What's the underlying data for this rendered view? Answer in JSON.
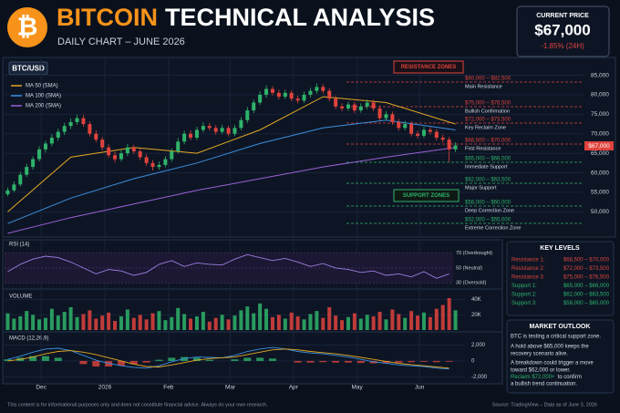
{
  "header": {
    "title_accent": "BITCOIN",
    "title_rest": "TECHNICAL ANALYSIS",
    "subtitle": "DAILY CHART – JUNE 2026"
  },
  "price_box": {
    "label": "CURRENT PRICE",
    "price": "$67,000",
    "change": "-1.85% (24H)"
  },
  "chart_data": [
    {
      "type": "candlestick",
      "title": "BTC/USD",
      "up_color": "#2fb36a",
      "down_color": "#e0433d",
      "grid": true,
      "xlim": [
        -0.5,
        71.5
      ],
      "xticks": [
        {
          "value": 5.3,
          "label": "Dec"
        },
        {
          "value": 15.4,
          "label": "2026"
        },
        {
          "value": 25.5,
          "label": "Feb"
        },
        {
          "value": 35.3,
          "label": "Mar"
        },
        {
          "value": 45.3,
          "label": "Apr"
        },
        {
          "value": 55.4,
          "label": "May"
        },
        {
          "value": 65.3,
          "label": "Jun"
        }
      ],
      "ylim": [
        44000,
        88400
      ],
      "yticks": [
        {
          "value": 85000,
          "label": "85,000"
        },
        {
          "value": 80000,
          "label": "80,000"
        },
        {
          "value": 75000,
          "label": "75,000"
        },
        {
          "value": 70000,
          "label": "70,000"
        },
        {
          "value": 65000,
          "label": "65,000"
        },
        {
          "value": 60000,
          "label": "60,000"
        },
        {
          "value": 55000,
          "label": "55,000"
        },
        {
          "value": 50000,
          "label": "50,000"
        }
      ],
      "ohlc": [
        [
          54500,
          56200,
          54000,
          55500
        ],
        [
          55500,
          57800,
          55000,
          57000
        ],
        [
          57000,
          60200,
          56500,
          59500
        ],
        [
          59500,
          62300,
          58900,
          61500
        ],
        [
          61500,
          64200,
          60800,
          63500
        ],
        [
          63500,
          66800,
          62900,
          66000
        ],
        [
          66000,
          68200,
          65200,
          67500
        ],
        [
          67500,
          69900,
          66800,
          69000
        ],
        [
          69000,
          71300,
          68200,
          70500
        ],
        [
          70500,
          72800,
          69700,
          72000
        ],
        [
          72000,
          73900,
          71200,
          73000
        ],
        [
          73000,
          74900,
          72300,
          74000
        ],
        [
          74000,
          74800,
          71800,
          72500
        ],
        [
          72500,
          73200,
          69300,
          70000
        ],
        [
          70000,
          70900,
          67800,
          68500
        ],
        [
          68500,
          69200,
          65700,
          66500
        ],
        [
          66500,
          67300,
          63800,
          64500
        ],
        [
          64500,
          65400,
          62700,
          63500
        ],
        [
          63500,
          65800,
          62900,
          65000
        ],
        [
          65000,
          67400,
          64300,
          66500
        ],
        [
          66500,
          67200,
          64800,
          65500
        ],
        [
          65500,
          66300,
          63200,
          64000
        ],
        [
          64000,
          64800,
          61700,
          62500
        ],
        [
          62500,
          63300,
          60600,
          61500
        ],
        [
          61500,
          62900,
          60800,
          62000
        ],
        [
          62000,
          64300,
          61400,
          63500
        ],
        [
          63500,
          66300,
          62800,
          65500
        ],
        [
          65500,
          68900,
          64900,
          68000
        ],
        [
          68000,
          70800,
          67300,
          70000
        ],
        [
          70000,
          70900,
          68300,
          69000
        ],
        [
          69000,
          71800,
          68400,
          71000
        ],
        [
          71000,
          72900,
          70300,
          72000
        ],
        [
          72000,
          72800,
          70800,
          71500
        ],
        [
          71500,
          72200,
          69800,
          70500
        ],
        [
          70500,
          72300,
          69900,
          71500
        ],
        [
          71500,
          72100,
          69300,
          70000
        ],
        [
          70000,
          72300,
          69400,
          71500
        ],
        [
          71500,
          74300,
          70900,
          73500
        ],
        [
          73500,
          76900,
          72800,
          76000
        ],
        [
          76000,
          78800,
          75300,
          78000
        ],
        [
          78000,
          80900,
          77400,
          80000
        ],
        [
          80000,
          82400,
          79300,
          81500
        ],
        [
          81500,
          82200,
          79800,
          80500
        ],
        [
          80500,
          81300,
          78800,
          79500
        ],
        [
          79500,
          81300,
          78900,
          80500
        ],
        [
          80500,
          81200,
          78300,
          79000
        ],
        [
          79000,
          79800,
          77800,
          78500
        ],
        [
          78500,
          80800,
          77900,
          80000
        ],
        [
          80000,
          81800,
          79300,
          81000
        ],
        [
          81000,
          82900,
          80300,
          82000
        ],
        [
          82000,
          82700,
          80300,
          81000
        ],
        [
          81000,
          81700,
          78300,
          79000
        ],
        [
          79000,
          79800,
          76300,
          77000
        ],
        [
          77000,
          77800,
          75800,
          76500
        ],
        [
          76500,
          78300,
          75900,
          77500
        ],
        [
          77500,
          78200,
          75300,
          76000
        ],
        [
          76000,
          77800,
          75400,
          77000
        ],
        [
          77000,
          78800,
          76300,
          78000
        ],
        [
          78000,
          78700,
          75800,
          76500
        ],
        [
          76500,
          77200,
          73300,
          74000
        ],
        [
          74000,
          75800,
          73400,
          75000
        ],
        [
          75000,
          75700,
          72300,
          73000
        ],
        [
          73000,
          73800,
          70800,
          71500
        ],
        [
          71500,
          73300,
          70900,
          72500
        ],
        [
          72500,
          73200,
          69300,
          70000
        ],
        [
          70000,
          70800,
          68800,
          69500
        ],
        [
          69500,
          71800,
          68900,
          71000
        ],
        [
          71000,
          71700,
          69800,
          70500
        ],
        [
          70500,
          71200,
          68300,
          69000
        ],
        [
          69000,
          69800,
          67800,
          68500
        ],
        [
          68500,
          69200,
          62800,
          66000
        ],
        [
          66000,
          67800,
          65300,
          67000
        ]
      ],
      "lines": [
        {
          "name": "MA 50 (SMA)",
          "color": "#e5a823",
          "x": [
            0,
            10,
            20,
            30,
            40,
            50,
            60,
            71
          ],
          "values": [
            50000,
            64000,
            66500,
            65000,
            71000,
            79500,
            78000,
            72500
          ]
        },
        {
          "name": "MA 100 (SMA)",
          "color": "#3b8fe0",
          "x": [
            0,
            10,
            20,
            30,
            40,
            50,
            60,
            71
          ],
          "values": [
            47000,
            53500,
            58500,
            62500,
            67500,
            71500,
            73500,
            71000
          ]
        },
        {
          "name": "MA 200 (SMA)",
          "color": "#9b5fd6",
          "x": [
            0,
            10,
            20,
            30,
            40,
            50,
            60,
            71
          ],
          "values": [
            44500,
            48500,
            52000,
            55500,
            58500,
            61500,
            64000,
            66500
          ]
        }
      ],
      "zones": {
        "resistance_title": "RESISTANCE ZONES",
        "support_title": "SUPPORT ZONES",
        "resistance": [
          {
            "range": "$80,000 – $82,500",
            "label": "Main Resistance"
          },
          {
            "range": "$75,000 – $76,500",
            "label": "Bullish Confirmation"
          },
          {
            "range": "$72,000 – $73,500",
            "label": "Key Reclaim Zone"
          },
          {
            "range": "$68,500 – $70,000",
            "label": "First Resistance"
          }
        ],
        "support": [
          {
            "range": "$65,000 – $66,000",
            "label": "Immediate Support"
          },
          {
            "range": "$62,000 – $63,500",
            "label": "Major Support"
          },
          {
            "range": "$58,000 – $60,000",
            "label": "Deep Correction Zone"
          },
          {
            "range": "$52,000 – $55,000",
            "label": "Extreme Correction Zone"
          }
        ]
      },
      "price_tag": "$67,000"
    },
    {
      "type": "line",
      "title": "RSI (14)",
      "color": "#9b7fe0",
      "xlim": [
        -0.5,
        71.5
      ],
      "ylim": [
        24,
        82
      ],
      "yticks": [
        {
          "value": 70,
          "label": "70 (Overbought)"
        },
        {
          "value": 50,
          "label": "50 (Neutral)"
        },
        {
          "value": 30,
          "label": "30 (Oversold)"
        }
      ],
      "x": [
        0,
        2,
        4,
        6,
        8,
        10,
        12,
        14,
        16,
        18,
        20,
        22,
        24,
        26,
        28,
        30,
        32,
        34,
        36,
        38,
        40,
        42,
        44,
        46,
        48,
        50,
        52,
        54,
        56,
        58,
        60,
        62,
        64,
        66,
        68,
        70
      ],
      "values": [
        45,
        55,
        62,
        66,
        64,
        58,
        50,
        42,
        48,
        46,
        40,
        44,
        55,
        60,
        52,
        57,
        55,
        54,
        62,
        68,
        64,
        60,
        63,
        58,
        52,
        56,
        50,
        48,
        44,
        46,
        40,
        42,
        38,
        45,
        36,
        42
      ]
    },
    {
      "type": "bar",
      "title": "VOLUME",
      "up_color": "#2fb36a",
      "down_color": "#e0433d",
      "xlim": [
        -0.5,
        71.5
      ],
      "ylim": [
        0,
        48000
      ],
      "yticks": [
        {
          "value": 40000,
          "label": "40K"
        },
        {
          "value": 20000,
          "label": "20K"
        }
      ],
      "values": [
        22000,
        15000,
        18000,
        25000,
        20000,
        14000,
        16000,
        28000,
        19000,
        24000,
        30000,
        17000,
        21000,
        26000,
        15000,
        19000,
        23000,
        12000,
        18000,
        27000,
        16000,
        20000,
        14000,
        22000,
        25000,
        13000,
        17000,
        29000,
        21000,
        15000,
        18000,
        24000,
        11000,
        16000,
        20000,
        14000,
        19000,
        26000,
        31000,
        22000,
        35000,
        28000,
        17000,
        20000,
        15000,
        23000,
        18000,
        14000,
        21000,
        25000,
        16000,
        30000,
        19000,
        13000,
        17000,
        22000,
        15000,
        20000,
        18000,
        24000,
        14000,
        27000,
        21000,
        16000,
        25000,
        19000,
        23000,
        17000,
        28000,
        33000,
        42000,
        26000
      ]
    },
    {
      "type": "macd",
      "title": "MACD (12,26,9)",
      "xlim": [
        -0.5,
        71.5
      ],
      "ylim": [
        -2300,
        3200
      ],
      "yticks": [
        {
          "value": 2000,
          "label": "2,000"
        },
        0,
        {
          "value": -2000,
          "label": "-2,000"
        }
      ],
      "macd_color": "#3b8fe0",
      "signal_color": "#e5a823",
      "hist_up_color": "#2fb36a",
      "hist_down_color": "#e0433d",
      "x": [
        0,
        2,
        4,
        6,
        8,
        10,
        12,
        14,
        16,
        18,
        20,
        22,
        24,
        26,
        28,
        30,
        32,
        34,
        36,
        38,
        40,
        42,
        44,
        46,
        48,
        50,
        52,
        54,
        56,
        58,
        60,
        62,
        64,
        66,
        68,
        70
      ],
      "macd": [
        200,
        600,
        1100,
        1500,
        1600,
        1300,
        700,
        100,
        -300,
        -600,
        -800,
        -900,
        -600,
        -100,
        300,
        500,
        450,
        400,
        700,
        1200,
        1500,
        1700,
        1500,
        1200,
        1000,
        900,
        700,
        500,
        200,
        -100,
        -300,
        -500,
        -600,
        -700,
        -900,
        -1000
      ],
      "signal": [
        0,
        200,
        500,
        900,
        1200,
        1300,
        1100,
        800,
        400,
        0,
        -400,
        -700,
        -750,
        -500,
        -200,
        100,
        300,
        400,
        500,
        800,
        1100,
        1400,
        1500,
        1400,
        1200,
        1050,
        900,
        700,
        450,
        200,
        -50,
        -300,
        -450,
        -600,
        -750,
        -900
      ],
      "histogram": [
        200,
        400,
        600,
        600,
        400,
        0,
        -400,
        -700,
        -700,
        -600,
        -400,
        -200,
        150,
        400,
        500,
        400,
        150,
        0,
        200,
        400,
        400,
        300,
        0,
        -200,
        -200,
        -150,
        -200,
        -200,
        -250,
        -300,
        -250,
        -200,
        -150,
        -100,
        -150,
        -100
      ]
    }
  ],
  "key_levels": {
    "title": "KEY LEVELS",
    "rows": [
      {
        "name": "Resistance 1:",
        "range": "$68,500 – $70,000",
        "kind": "resistance"
      },
      {
        "name": "Resistance 2:",
        "range": "$72,000 – $73,500",
        "kind": "resistance"
      },
      {
        "name": "Resistance 3:",
        "range": "$75,000 – $76,500",
        "kind": "resistance"
      },
      {
        "name": "Support 1:",
        "range": "$65,000 – $66,000",
        "kind": "support"
      },
      {
        "name": "Support 2:",
        "range": "$62,000 – $63,500",
        "kind": "support"
      },
      {
        "name": "Support 3:",
        "range": "$58,000 – $60,000",
        "kind": "support"
      }
    ]
  },
  "outlook": {
    "title": "MARKET OUTLOOK",
    "lines": [
      "BTC is testing a critical support zone.",
      "A hold above $65,000 keeps the",
      "recovery scenario alive.",
      "A breakdown could trigger a move",
      "toward $62,000 or lower."
    ],
    "highlight": "Reclaim $72,000+",
    "highlight_rest": "to confirm",
    "last_line": "a bullish trend continuation."
  },
  "footer": {
    "disclaimer": "This content is for informational purposes only and does not constitute financial advice. Always do your own research.",
    "source": "Source: TradingView – Data as of June 3, 2026"
  }
}
